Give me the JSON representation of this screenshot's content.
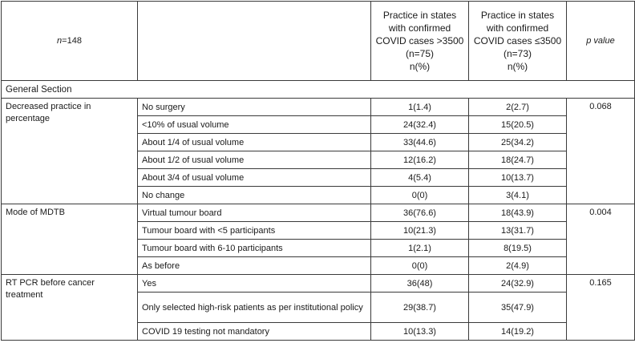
{
  "header": {
    "n_label": "n=148",
    "n_var": "n",
    "n_value": "=148",
    "group1": [
      "Practice in states",
      "with confirmed",
      "COVID cases >3500",
      "(n=75)",
      "n(%)"
    ],
    "group2": [
      "Practice in states",
      "with confirmed",
      "COVID cases ≤3500",
      "(n=73)",
      "n(%)"
    ],
    "pvalue_label": "p value"
  },
  "section_title": "General Section",
  "groups": [
    {
      "label": "Decreased practice in percentage",
      "pvalue": "0.068",
      "rows": [
        {
          "option": "No surgery",
          "g1": "1(1.4)",
          "g2": "2(2.7)"
        },
        {
          "option": "<10% of usual volume",
          "g1": "24(32.4)",
          "g2": "15(20.5)"
        },
        {
          "option": "About 1/4 of usual volume",
          "g1": "33(44.6)",
          "g2": "25(34.2)"
        },
        {
          "option": "About 1/2 of usual volume",
          "g1": "12(16.2)",
          "g2": "18(24.7)"
        },
        {
          "option": "About 3/4 of usual volume",
          "g1": "4(5.4)",
          "g2": "10(13.7)"
        },
        {
          "option": "No change",
          "g1": "0(0)",
          "g2": "3(4.1)"
        }
      ]
    },
    {
      "label": "Mode of MDTB",
      "pvalue": "0.004",
      "rows": [
        {
          "option": "Virtual tumour board",
          "g1": "36(76.6)",
          "g2": "18(43.9)"
        },
        {
          "option": "Tumour board with <5 participants",
          "g1": "10(21.3)",
          "g2": "13(31.7)"
        },
        {
          "option": "Tumour board with 6-10 participants",
          "g1": "1(2.1)",
          "g2": "8(19.5)"
        },
        {
          "option": "As before",
          "g1": "0(0)",
          "g2": "2(4.9)"
        }
      ]
    },
    {
      "label": "RT PCR before cancer treatment",
      "pvalue": "0.165",
      "rows": [
        {
          "option": "Yes",
          "g1": "36(48)",
          "g2": "24(32.9)"
        },
        {
          "option": "Only selected high-risk patients as per institutional policy",
          "g1": "29(38.7)",
          "g2": "35(47.9)"
        },
        {
          "option": "COVID 19 testing not mandatory",
          "g1": "10(13.3)",
          "g2": "14(19.2)"
        }
      ]
    }
  ]
}
